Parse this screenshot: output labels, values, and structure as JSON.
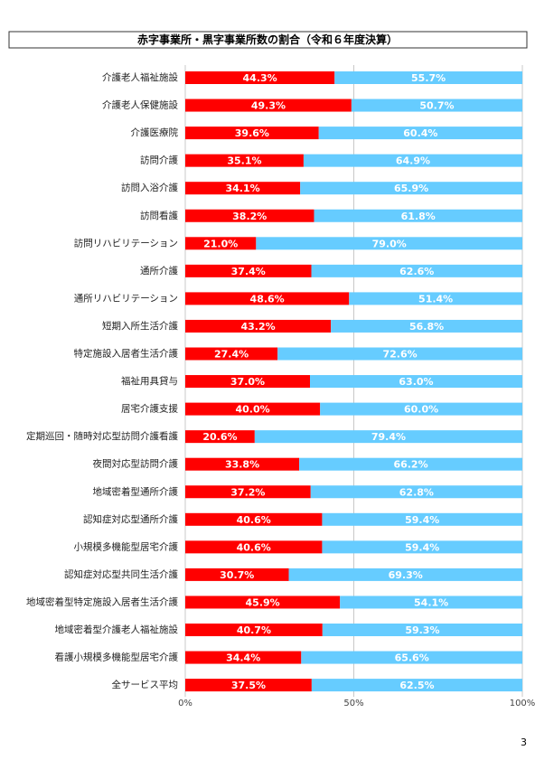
{
  "chart_data": {
    "type": "stacked-bar-horizontal",
    "title": "赤字事業所・黒字事業所数の割合（令和６年度決算）",
    "categories": [
      "介護老人福祉施設",
      "介護老人保健施設",
      "介護医療院",
      "訪問介護",
      "訪問入浴介護",
      "訪問看護",
      "訪問リハビリテーション",
      "通所介護",
      "通所リハビリテーション",
      "短期入所生活介護",
      "特定施設入居者生活介護",
      "福祉用具貸与",
      "居宅介護支援",
      "定期巡回・随時対応型訪問介護看護",
      "夜間対応型訪問介護",
      "地域密着型通所介護",
      "認知症対応型通所介護",
      "小規模多機能型居宅介護",
      "認知症対応型共同生活介護",
      "地域密着型特定施設入居者生活介護",
      "地域密着型介護老人福祉施設",
      "看護小規模多機能型居宅介護",
      "全サービス平均"
    ],
    "series": [
      {
        "color": "#ff0000",
        "values": [
          44.3,
          49.3,
          39.6,
          35.1,
          34.1,
          38.2,
          21.0,
          37.4,
          48.6,
          43.2,
          27.4,
          37.0,
          40.0,
          20.6,
          33.8,
          37.2,
          40.6,
          40.6,
          30.7,
          45.9,
          40.7,
          34.4,
          37.5
        ],
        "value_labels": [
          "44.3%",
          "49.3%",
          "39.6%",
          "35.1%",
          "34.1%",
          "38.2%",
          "21.0%",
          "37.4%",
          "48.6%",
          "43.2%",
          "27.4%",
          "37.0%",
          "40.0%",
          "20.6%",
          "33.8%",
          "37.2%",
          "40.6%",
          "40.6%",
          "30.7%",
          "45.9%",
          "40.7%",
          "34.4%",
          "37.5%"
        ]
      },
      {
        "color": "#66ccff",
        "values": [
          55.7,
          50.7,
          60.4,
          64.9,
          65.9,
          61.8,
          79.0,
          62.6,
          51.4,
          56.8,
          72.6,
          63.0,
          60.0,
          79.4,
          66.2,
          62.8,
          59.4,
          59.4,
          69.3,
          54.1,
          59.3,
          65.6,
          62.5
        ],
        "value_labels": [
          "55.7%",
          "50.7%",
          "60.4%",
          "64.9%",
          "65.9%",
          "61.8%",
          "79.0%",
          "62.6%",
          "51.4%",
          "56.8%",
          "72.6%",
          "63.0%",
          "60.0%",
          "79.4%",
          "66.2%",
          "62.8%",
          "59.4%",
          "59.4%",
          "69.3%",
          "54.1%",
          "59.3%",
          "65.6%",
          "62.5%"
        ]
      }
    ],
    "xlim": [
      0,
      100
    ],
    "xticks": [
      {
        "value": 0,
        "label": "0%"
      },
      {
        "value": 50,
        "label": "50%"
      },
      {
        "value": 100,
        "label": "100%"
      }
    ]
  },
  "page_number": "3"
}
